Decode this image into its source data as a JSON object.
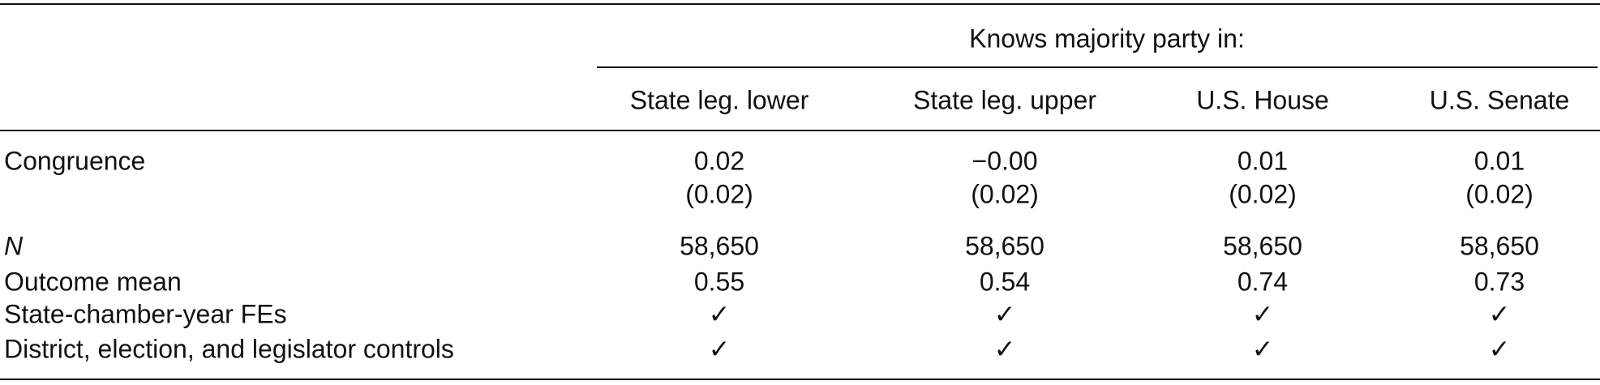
{
  "table": {
    "spanner": "Knows majority party in:",
    "columns": [
      "State leg. lower",
      "State leg. upper",
      "U.S. House",
      "U.S. Senate"
    ],
    "congruence": {
      "label": "Congruence",
      "estimates": [
        "0.02",
        "−0.00",
        "0.01",
        "0.01"
      ],
      "std_errors": [
        "(0.02)",
        "(0.02)",
        "(0.02)",
        "(0.02)"
      ]
    },
    "rows": [
      {
        "label": "N",
        "cells": [
          "58,650",
          "58,650",
          "58,650",
          "58,650"
        ]
      },
      {
        "label": "Outcome mean",
        "cells": [
          "0.55",
          "0.54",
          "0.74",
          "0.73"
        ]
      },
      {
        "label": "State-chamber-year FEs",
        "cells": [
          "✓",
          "✓",
          "✓",
          "✓"
        ]
      },
      {
        "label": "District, election, and legislator controls",
        "cells": [
          "✓",
          "✓",
          "✓",
          "✓"
        ]
      }
    ]
  }
}
